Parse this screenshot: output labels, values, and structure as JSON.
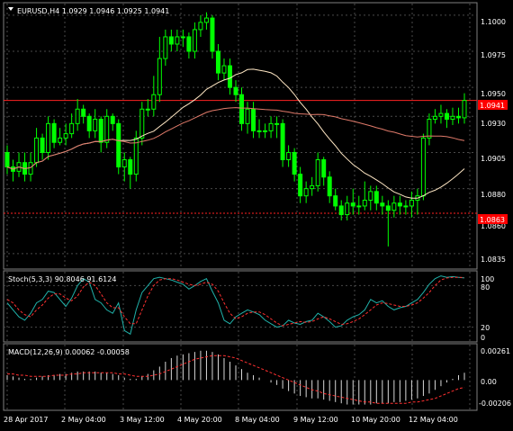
{
  "main_panel": {
    "symbol_header": "EURUSD,H4  1.0929 1.0946 1.0925 1.0941",
    "y_ticks": [
      "1.1000",
      "1.0975",
      "1.0950",
      "1.0930",
      "1.0905",
      "1.0880",
      "1.0860",
      "1.0835"
    ],
    "price_tags": [
      "1.0941",
      "1.0863"
    ],
    "ylim": [
      1.0825,
      1.1008
    ]
  },
  "stoch_panel": {
    "header": "Stoch(5,3,3) 90.8046 91.6124",
    "y_ticks": [
      "100",
      "80",
      "20",
      "0"
    ],
    "ylim": [
      0,
      100
    ]
  },
  "macd_panel": {
    "header": "MACD(12,26,9) 0.00062 -0.00058",
    "y_ticks": [
      "0.00261",
      "0.00",
      "-0.00206"
    ],
    "ylim": [
      -0.0024,
      0.0029
    ]
  },
  "x_ticks": [
    "28 Apr 2017",
    "2 May 04:00",
    "3 May 12:00",
    "4 May 20:00",
    "8 May 04:00",
    "9 May 12:00",
    "10 May 20:00",
    "12 May 04:00"
  ],
  "colors": {
    "background": "#000000",
    "grid": "#4a4a4a",
    "candle": "#00ff00",
    "ma_fast": "#ffe7c4",
    "ma_slow": "#e07a6a",
    "level_line": "#ff2222",
    "tag_bg": "#ff0000",
    "stoch_main": "#20b2aa",
    "stoch_signal": "#ff3030",
    "macd_hist": "#d8d8d8",
    "macd_signal": "#ff3030"
  },
  "chart_data": [
    {
      "type": "candlestick",
      "title": "EURUSD,H4  1.0929 1.0946 1.0925 1.0941",
      "ylim": [
        1.0825,
        1.1008
      ],
      "levels": [
        1.0941,
        1.0863
      ],
      "series": [
        {
          "o": [
            1.0905,
            1.0895,
            1.0892,
            1.0898,
            1.089,
            1.0898,
            1.0915,
            1.0905,
            1.0925,
            1.0912,
            1.0915,
            1.0918,
            1.0925,
            1.0935,
            1.093,
            1.092,
            1.0928,
            1.0912,
            1.093,
            1.0925,
            1.0895,
            1.09,
            1.089,
            1.0915,
            1.0935,
            1.0935,
            1.0945,
            1.097,
            1.0985,
            1.098,
            1.0985,
            1.0985,
            1.0975,
            1.099,
            1.0995,
            1.0998,
            1.0975,
            1.096,
            1.0965,
            1.095,
            1.0945,
            1.0925,
            1.0935,
            1.092,
            1.092,
            1.092,
            1.0925,
            1.0925,
            1.09,
            1.0905,
            1.089,
            1.0875,
            1.088,
            1.0882,
            1.09,
            1.0888,
            1.0875,
            1.0868,
            1.0862,
            1.087,
            1.0868,
            1.0868,
            1.0872,
            1.0878,
            1.087,
            1.0868,
            1.0865,
            1.087,
            1.0868,
            1.0868,
            1.0872,
            1.0875,
            1.0915,
            1.0928,
            1.093,
            1.0932,
            1.0928,
            1.093,
            1.0929
          ]
        },
        {
          "c": [
            1.0895,
            1.0892,
            1.0898,
            1.089,
            1.0898,
            1.0915,
            1.0905,
            1.0925,
            1.0912,
            1.0915,
            1.0918,
            1.0925,
            1.0935,
            1.093,
            1.092,
            1.0928,
            1.0912,
            1.093,
            1.0925,
            1.0895,
            1.09,
            1.089,
            1.0915,
            1.0935,
            1.0935,
            1.0945,
            1.097,
            1.0985,
            1.098,
            1.0985,
            1.0985,
            1.0975,
            1.099,
            1.0995,
            1.0998,
            1.0975,
            1.096,
            1.0965,
            1.095,
            1.0945,
            1.0925,
            1.0935,
            1.092,
            1.092,
            1.092,
            1.0925,
            1.0925,
            1.09,
            1.0905,
            1.089,
            1.0875,
            1.088,
            1.0882,
            1.09,
            1.0888,
            1.0875,
            1.0868,
            1.0862,
            1.087,
            1.0868,
            1.0868,
            1.0872,
            1.0878,
            1.087,
            1.0868,
            1.0865,
            1.087,
            1.0868,
            1.0868,
            1.0872,
            1.0875,
            1.0915,
            1.0928,
            1.093,
            1.0932,
            1.0928,
            1.093,
            1.0929,
            1.0941
          ]
        },
        {
          "h": [
            1.091,
            1.09,
            1.0905,
            1.0905,
            1.0905,
            1.0922,
            1.0918,
            1.093,
            1.0928,
            1.0922,
            1.0925,
            1.0932,
            1.0942,
            1.0938,
            1.0932,
            1.0935,
            1.093,
            1.0935,
            1.0932,
            1.0928,
            1.0905,
            1.0902,
            1.092,
            1.094,
            1.0942,
            1.0958,
            1.0985,
            1.099,
            1.099,
            1.099,
            1.099,
            1.0988,
            1.0995,
            1.1,
            1.1002,
            1.1,
            1.098,
            1.097,
            1.097,
            1.0955,
            1.095,
            1.094,
            1.094,
            1.0928,
            1.0925,
            1.093,
            1.093,
            1.0928,
            1.091,
            1.0908,
            1.0895,
            1.0885,
            1.0888,
            1.0905,
            1.0902,
            1.0892,
            1.088,
            1.0872,
            1.0875,
            1.088,
            1.0875,
            1.0885,
            1.0882,
            1.0882,
            1.0875,
            1.0872,
            1.0875,
            1.0875,
            1.0872,
            1.0878,
            1.088,
            1.0918,
            1.0932,
            1.0935,
            1.0938,
            1.0935,
            1.0936,
            1.0936,
            1.0946
          ]
        },
        {
          "l": [
            1.089,
            1.0885,
            1.0888,
            1.0885,
            1.0885,
            1.0895,
            1.09,
            1.09,
            1.0908,
            1.091,
            1.091,
            1.0915,
            1.092,
            1.0925,
            1.0915,
            1.0915,
            1.0905,
            1.0908,
            1.092,
            1.089,
            1.0885,
            1.088,
            1.0885,
            1.091,
            1.093,
            1.093,
            1.094,
            1.0965,
            1.0975,
            1.0975,
            1.0978,
            1.097,
            1.097,
            1.0985,
            1.099,
            1.097,
            1.0955,
            1.0955,
            1.0945,
            1.094,
            1.092,
            1.0918,
            1.0915,
            1.0915,
            1.0915,
            1.0915,
            1.0915,
            1.0895,
            1.0895,
            1.0885,
            1.087,
            1.087,
            1.0875,
            1.0878,
            1.0882,
            1.087,
            1.0865,
            1.0858,
            1.0858,
            1.0862,
            1.0862,
            1.0865,
            1.0865,
            1.0865,
            1.0862,
            1.084,
            1.086,
            1.0862,
            1.0862,
            1.086,
            1.0862,
            1.0872,
            1.091,
            1.0925,
            1.0925,
            1.0922,
            1.0924,
            1.0925,
            1.0925
          ]
        }
      ]
    },
    {
      "type": "line",
      "title": "Stoch(5,3,3) 90.8046 91.6124",
      "ylim": [
        0,
        100
      ],
      "levels": [
        80,
        20
      ],
      "series": [
        {
          "values": [
            55,
            45,
            35,
            30,
            40,
            55,
            60,
            72,
            70,
            60,
            50,
            62,
            80,
            90,
            85,
            60,
            55,
            45,
            40,
            55,
            15,
            10,
            45,
            70,
            80,
            90,
            92,
            90,
            88,
            85,
            82,
            75,
            80,
            86,
            90,
            72,
            55,
            30,
            25,
            35,
            40,
            45,
            42,
            38,
            30,
            25,
            20,
            22,
            30,
            26,
            24,
            28,
            30,
            40,
            35,
            28,
            20,
            22,
            30,
            35,
            38,
            45,
            60,
            55,
            58,
            50,
            45,
            48,
            50,
            55,
            60,
            70,
            82,
            90,
            94,
            92,
            93,
            92,
            91
          ]
        },
        {
          "values": [
            60,
            55,
            45,
            38,
            35,
            45,
            52,
            62,
            68,
            68,
            62,
            58,
            65,
            78,
            85,
            80,
            68,
            55,
            48,
            48,
            35,
            25,
            25,
            45,
            65,
            80,
            88,
            90,
            90,
            88,
            85,
            82,
            80,
            82,
            85,
            82,
            72,
            55,
            40,
            32,
            35,
            40,
            42,
            42,
            38,
            32,
            26,
            22,
            24,
            26,
            28,
            27,
            28,
            32,
            35,
            32,
            28,
            24,
            25,
            28,
            32,
            38,
            45,
            52,
            55,
            54,
            52,
            50,
            50,
            52,
            55,
            62,
            70,
            80,
            88,
            91,
            92,
            92,
            91.6
          ]
        }
      ]
    },
    {
      "type": "bar",
      "title": "MACD(12,26,9) 0.00062 -0.00058",
      "ylim": [
        -0.0024,
        0.0029
      ],
      "series": [
        {
          "values": [
            0.0004,
            0.0003,
            0.0002,
            0.0001,
            0.0001,
            0.0002,
            0.0003,
            0.0004,
            0.0004,
            0.0005,
            0.0005,
            0.0006,
            0.0007,
            0.0007,
            0.0007,
            0.0007,
            0.0006,
            0.0006,
            0.0005,
            0.0004,
            0.0002,
            0.0001,
            0.0001,
            0.0003,
            0.0005,
            0.0008,
            0.0011,
            0.0015,
            0.0018,
            0.002,
            0.0021,
            0.0022,
            0.0023,
            0.0024,
            0.0024,
            0.0023,
            0.0021,
            0.0018,
            0.0015,
            0.0012,
            0.0009,
            0.0006,
            0.0004,
            0.0002,
            0.0,
            -0.0002,
            -0.0004,
            -0.0007,
            -0.0009,
            -0.0011,
            -0.0013,
            -0.0014,
            -0.0015,
            -0.0015,
            -0.0016,
            -0.0017,
            -0.0018,
            -0.0019,
            -0.002,
            -0.002,
            -0.002,
            -0.002,
            -0.002,
            -0.0019,
            -0.0019,
            -0.0019,
            -0.0018,
            -0.0018,
            -0.0017,
            -0.0016,
            -0.0015,
            -0.0013,
            -0.0011,
            -0.0008,
            -0.0005,
            -0.0002,
            0.0001,
            0.0004,
            0.0006
          ]
        },
        {
          "values": [
            0.0005,
            0.0005,
            0.0004,
            0.0004,
            0.0003,
            0.0003,
            0.0003,
            0.0003,
            0.0004,
            0.0004,
            0.0004,
            0.0005,
            0.0005,
            0.0006,
            0.0006,
            0.0006,
            0.0006,
            0.0006,
            0.0006,
            0.0005,
            0.0005,
            0.0004,
            0.0003,
            0.0003,
            0.0003,
            0.0004,
            0.0005,
            0.0007,
            0.0009,
            0.0011,
            0.0013,
            0.0015,
            0.0017,
            0.0018,
            0.0019,
            0.002,
            0.002,
            0.002,
            0.0019,
            0.0018,
            0.0016,
            0.0014,
            0.0012,
            0.001,
            0.0008,
            0.0006,
            0.0004,
            0.0002,
            0.0,
            -0.0002,
            -0.0004,
            -0.0006,
            -0.0008,
            -0.0009,
            -0.0011,
            -0.0012,
            -0.0013,
            -0.0014,
            -0.0015,
            -0.0016,
            -0.0017,
            -0.0018,
            -0.0018,
            -0.0019,
            -0.0019,
            -0.0019,
            -0.0019,
            -0.0019,
            -0.0019,
            -0.0018,
            -0.0018,
            -0.0017,
            -0.0016,
            -0.0015,
            -0.0013,
            -0.0011,
            -0.0009,
            -0.0007,
            -0.0006
          ]
        }
      ]
    }
  ]
}
